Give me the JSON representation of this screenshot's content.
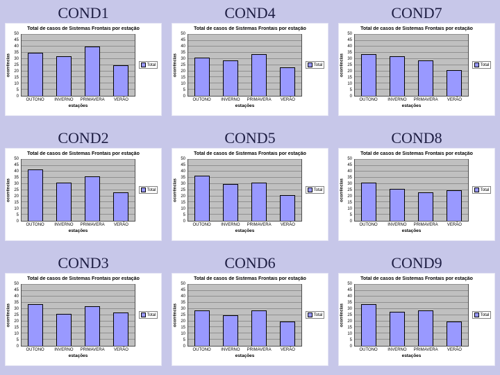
{
  "slide": {
    "background_color": "#c7c7e9",
    "chart_background_color": "#ffffff",
    "plot_area_color": "#c0c0c0",
    "bar_color": "#9999ff",
    "panel_title_color": "#1d1d42"
  },
  "chart_data": [
    {
      "type": "bar",
      "label": "COND1",
      "title": "Total de casos de Sistemas Frontais por estação",
      "categories": [
        "OUTONO",
        "INVERNO",
        "PRIMAVERA",
        "VERÃO"
      ],
      "values": [
        35,
        32,
        40,
        25
      ],
      "xlabel": "estações",
      "ylabel": "ocorrências",
      "legend": [
        "Total"
      ],
      "ylim": [
        0,
        50
      ],
      "yticks": [
        0,
        5,
        10,
        15,
        20,
        25,
        30,
        35,
        40,
        45,
        50
      ],
      "grid": true,
      "legend_position": "right"
    },
    {
      "type": "bar",
      "label": "COND4",
      "title": "Total de casos de Sistemas Frontais por estação",
      "categories": [
        "OUTONO",
        "INVERNO",
        "PRIMAVERA",
        "VERÃO"
      ],
      "values": [
        31,
        29,
        34,
        23
      ],
      "xlabel": "estações",
      "ylabel": "ocorrências",
      "legend": [
        "Total"
      ],
      "ylim": [
        0,
        50
      ],
      "yticks": [
        0,
        5,
        10,
        15,
        20,
        25,
        30,
        35,
        40,
        45,
        50
      ],
      "grid": true,
      "legend_position": "right"
    },
    {
      "type": "bar",
      "label": "COND7",
      "title": "Total de casos de Sistemas Frontais por estação",
      "categories": [
        "OUTONO",
        "INVERNO",
        "PRIMAVERA",
        "VERÃO"
      ],
      "values": [
        34,
        32,
        29,
        21
      ],
      "xlabel": "estações",
      "ylabel": "ocorrências",
      "legend": [
        "Total"
      ],
      "ylim": [
        0,
        50
      ],
      "yticks": [
        0,
        5,
        10,
        15,
        20,
        25,
        30,
        35,
        40,
        45,
        50
      ],
      "grid": true,
      "legend_position": "right"
    },
    {
      "type": "bar",
      "label": "COND2",
      "title": "Total de casos de Sistemas Frontais por estação",
      "categories": [
        "OUTONO",
        "INVERNO",
        "PRIMAVERA",
        "VERÃO"
      ],
      "values": [
        42,
        31,
        36,
        23
      ],
      "xlabel": "estações",
      "ylabel": "ocorrências",
      "legend": [
        "Total"
      ],
      "ylim": [
        0,
        50
      ],
      "yticks": [
        0,
        5,
        10,
        15,
        20,
        25,
        30,
        35,
        40,
        45,
        50
      ],
      "grid": true,
      "legend_position": "right"
    },
    {
      "type": "bar",
      "label": "COND5",
      "title": "Total de casos de Sistemas Frontais por estação",
      "categories": [
        "OUTONO",
        "INVERNO",
        "PRIMAVERA",
        "VERÃO"
      ],
      "values": [
        37,
        30,
        31,
        21
      ],
      "xlabel": "estações",
      "ylabel": "ocorrências",
      "legend": [
        "Total"
      ],
      "ylim": [
        0,
        50
      ],
      "yticks": [
        0,
        5,
        10,
        15,
        20,
        25,
        30,
        35,
        40,
        45,
        50
      ],
      "grid": true,
      "legend_position": "right"
    },
    {
      "type": "bar",
      "label": "COND8",
      "title": "Total de casos de Sistemas Frontais por estação",
      "categories": [
        "OUTONO",
        "INVERNO",
        "PRIMAVERA",
        "VERÃO"
      ],
      "values": [
        31,
        26,
        23,
        25
      ],
      "xlabel": "estações",
      "ylabel": "ocorrências",
      "legend": [
        "Total"
      ],
      "ylim": [
        0,
        50
      ],
      "yticks": [
        0,
        5,
        10,
        15,
        20,
        25,
        30,
        35,
        40,
        45,
        50
      ],
      "grid": true,
      "legend_position": "right"
    },
    {
      "type": "bar",
      "label": "COND3",
      "title": "Total de casos de Sistemas Frontais por estação",
      "categories": [
        "OUTONO",
        "INVERNO",
        "PRIMAVERA",
        "VERÃO"
      ],
      "values": [
        34,
        26,
        32,
        27
      ],
      "xlabel": "estações",
      "ylabel": "ocorrências",
      "legend": [
        "Total"
      ],
      "ylim": [
        0,
        50
      ],
      "yticks": [
        0,
        5,
        10,
        15,
        20,
        25,
        30,
        35,
        40,
        45,
        50
      ],
      "grid": true,
      "legend_position": "right"
    },
    {
      "type": "bar",
      "label": "COND6",
      "title": "Total de casos de Sistemas Frontais por estação",
      "categories": [
        "OUTONO",
        "INVERNO",
        "PRIMAVERA",
        "VERÃO"
      ],
      "values": [
        29,
        25,
        29,
        20
      ],
      "xlabel": "estações",
      "ylabel": "ocorrências",
      "legend": [
        "Total"
      ],
      "ylim": [
        0,
        50
      ],
      "yticks": [
        0,
        5,
        10,
        15,
        20,
        25,
        30,
        35,
        40,
        45,
        50
      ],
      "grid": true,
      "legend_position": "right"
    },
    {
      "type": "bar",
      "label": "COND9",
      "title": "Total de casos de Sistemas Frontais por estação",
      "categories": [
        "OUTONO",
        "INVERNO",
        "PRIMAVERA",
        "VERÃO"
      ],
      "values": [
        34,
        28,
        29,
        20
      ],
      "xlabel": "estações",
      "ylabel": "ocorrências",
      "legend": [
        "Total"
      ],
      "ylim": [
        0,
        50
      ],
      "yticks": [
        0,
        5,
        10,
        15,
        20,
        25,
        30,
        35,
        40,
        45,
        50
      ],
      "grid": true,
      "legend_position": "right"
    }
  ]
}
